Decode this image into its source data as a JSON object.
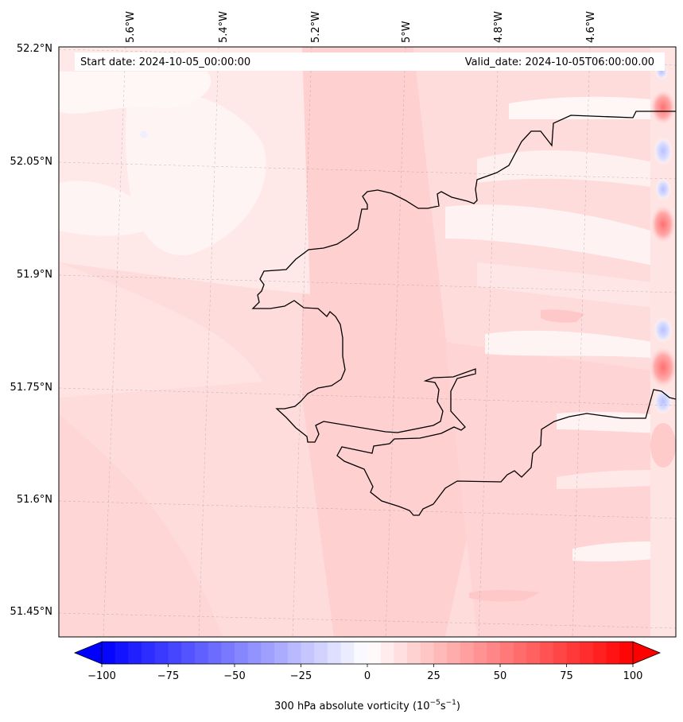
{
  "header": {
    "start_date": "Start date: 2024-10-05_00:00:00",
    "valid_date": "Valid_date: 2024-10-05T06:00:00.00"
  },
  "axes": {
    "lon_labels": [
      "5.6°W",
      "5.4°W",
      "5.2°W",
      "5°W",
      "4.8°W",
      "4.6°W"
    ],
    "lat_labels": [
      "52.2°N",
      "52.05°N",
      "51.9°N",
      "51.75°N",
      "51.6°N",
      "51.45°N"
    ]
  },
  "colorbar": {
    "ticks": [
      "−100",
      "−75",
      "−50",
      "−25",
      "0",
      "25",
      "50",
      "75",
      "100"
    ],
    "label_main": "300 hPa absolute vorticity (10",
    "label_exp1": "−5",
    "label_mid": "s",
    "label_exp2": "−1",
    "label_end": ")",
    "min_color": "#0000ff",
    "mid_color": "#ffffff",
    "max_color": "#ff0000"
  },
  "colors": {
    "land_outline": "#000000",
    "base_field": "#ffdcdc"
  }
}
